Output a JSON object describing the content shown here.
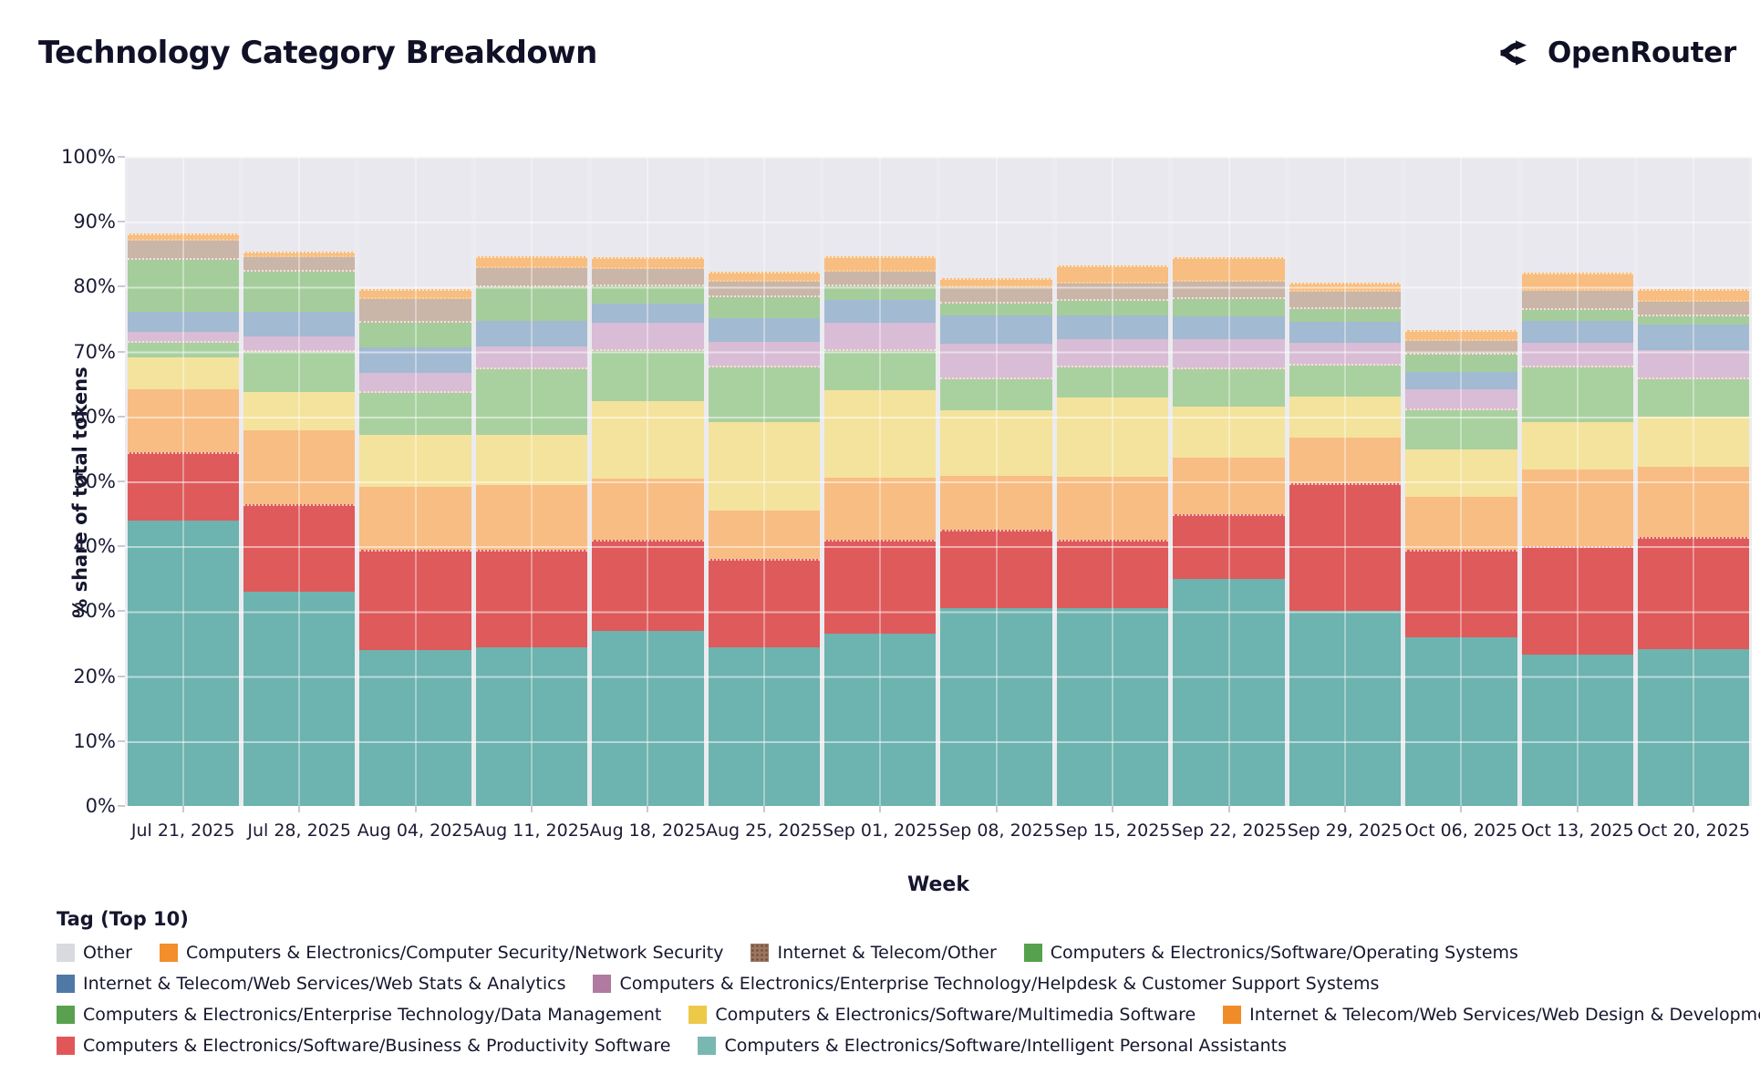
{
  "header": {
    "title": "Technology Category Breakdown",
    "brand": "OpenRouter"
  },
  "chart_data": {
    "type": "bar",
    "subtype": "stacked-100-percent",
    "title": "Technology Category Breakdown",
    "xlabel": "Week",
    "ylabel": "% share of total tokens",
    "ylim": [
      0,
      100
    ],
    "grid": true,
    "y_ticks": [
      "0%",
      "10%",
      "20%",
      "30%",
      "40%",
      "50%",
      "60%",
      "70%",
      "80%",
      "90%",
      "100%"
    ],
    "categories": [
      "Jul 21, 2025",
      "Jul 28, 2025",
      "Aug 04, 2025",
      "Aug 11, 2025",
      "Aug 18, 2025",
      "Aug 25, 2025",
      "Sep 01, 2025",
      "Sep 08, 2025",
      "Sep 15, 2025",
      "Sep 22, 2025",
      "Sep 29, 2025",
      "Oct 06, 2025",
      "Oct 13, 2025",
      "Oct 20, 2025"
    ],
    "series": [
      {
        "id": "ipa",
        "label": "Computers & Electronics/Software/Intelligent Personal Assistants",
        "legend_color": "#79b8b2",
        "fill": "#6db3af",
        "pattern": null,
        "values": [
          44.0,
          33.0,
          24.0,
          24.5,
          27.0,
          24.5,
          26.5,
          30.5,
          30.5,
          35.0,
          30.0,
          26.0,
          23.3,
          24.2
        ]
      },
      {
        "id": "bps",
        "label": "Computers & Electronics/Software/Business & Productivity Software",
        "legend_color": "#e15759",
        "fill": "#df5a5b",
        "pattern": null,
        "values": [
          10.5,
          13.5,
          15.5,
          15.0,
          14.0,
          13.5,
          14.5,
          12.0,
          10.5,
          10.0,
          19.7,
          13.5,
          16.7,
          17.2
        ]
      },
      {
        "id": "wdd",
        "label": "Internet & Telecom/Web Services/Web Design & Development",
        "legend_color": "#f08c28",
        "fill": "#f8bd83",
        "pattern": null,
        "values": [
          9.7,
          11.3,
          9.7,
          10.0,
          9.4,
          7.5,
          9.6,
          8.4,
          9.7,
          8.7,
          7.1,
          8.1,
          11.8,
          10.9
        ]
      },
      {
        "id": "mm",
        "label": "Computers & Electronics/Software/Multimedia Software",
        "legend_color": "#edc948",
        "fill": "#f4e39c",
        "pattern": null,
        "values": [
          4.9,
          5.9,
          8.0,
          7.7,
          12.0,
          13.6,
          13.4,
          10.1,
          12.2,
          7.8,
          6.2,
          7.3,
          7.3,
          7.7
        ]
      },
      {
        "id": "dm",
        "label": "Computers & Electronics/Enterprise Technology/Data Management",
        "legend_color": "#59a14f",
        "fill": "#a9d19f",
        "pattern": null,
        "values": [
          2.2,
          6.3,
          6.4,
          10.1,
          7.7,
          8.5,
          6.1,
          4.7,
          4.7,
          5.8,
          4.8,
          6.1,
          8.5,
          5.8
        ]
      },
      {
        "id": "hd",
        "label": "Computers & Electronics/Enterprise Technology/Helpdesk & Customer Support Systems",
        "legend_color": "#b07aa1",
        "fill": "#d9bcd5",
        "pattern": "dots-light",
        "values": [
          1.7,
          2.3,
          3.1,
          3.5,
          4.3,
          3.9,
          4.4,
          5.5,
          4.3,
          4.6,
          3.6,
          3.2,
          3.7,
          4.5
        ]
      },
      {
        "id": "ws",
        "label": "Internet & Telecom/Web Services/Web Stats & Analytics",
        "legend_color": "#4e79a7",
        "fill": "#a2bad2",
        "pattern": null,
        "values": [
          3.1,
          3.9,
          3.9,
          3.9,
          3.0,
          3.6,
          3.4,
          4.3,
          3.6,
          3.6,
          3.2,
          2.7,
          3.4,
          3.9
        ]
      },
      {
        "id": "os",
        "label": "Computers & Electronics/Software/Operating Systems",
        "legend_color": "#55a14e",
        "fill": "#a5cd9b",
        "pattern": null,
        "values": [
          8.1,
          6.1,
          3.9,
          5.2,
          2.6,
          3.3,
          2.2,
          1.9,
          2.3,
          2.6,
          1.9,
          2.6,
          1.7,
          1.2
        ]
      },
      {
        "id": "ito",
        "label": "Internet & Telecom/Other",
        "legend_color": "#9c755f",
        "fill": "#cab5a9",
        "pattern": "dots-dark",
        "values": [
          2.9,
          2.3,
          3.6,
          3.0,
          2.7,
          2.4,
          2.2,
          2.5,
          2.7,
          2.7,
          2.7,
          2.2,
          3.0,
          2.3
        ]
      },
      {
        "id": "ns",
        "label": "Computers & Electronics/Computer Security/Network Security",
        "legend_color": "#f28e2b",
        "fill": "#f8bd80",
        "pattern": null,
        "values": [
          1.1,
          0.8,
          1.6,
          1.8,
          1.9,
          1.5,
          2.4,
          1.5,
          2.8,
          3.7,
          1.4,
          1.6,
          2.8,
          2.0
        ]
      },
      {
        "id": "other",
        "label": "Other",
        "legend_color": "#d9d9e0",
        "fill": "#e8e8ee",
        "pattern": null,
        "values": [
          11.8,
          14.6,
          20.3,
          15.3,
          15.4,
          17.7,
          15.3,
          18.6,
          16.7,
          15.5,
          19.4,
          26.7,
          17.8,
          20.3
        ]
      }
    ],
    "legend": {
      "title": "Tag (Top 10)",
      "position": "bottom-left",
      "rows": [
        [
          "other",
          "ns",
          "ito",
          "os"
        ],
        [
          "ws",
          "hd"
        ],
        [
          "dm",
          "mm",
          "wdd"
        ],
        [
          "bps",
          "ipa"
        ]
      ]
    }
  }
}
